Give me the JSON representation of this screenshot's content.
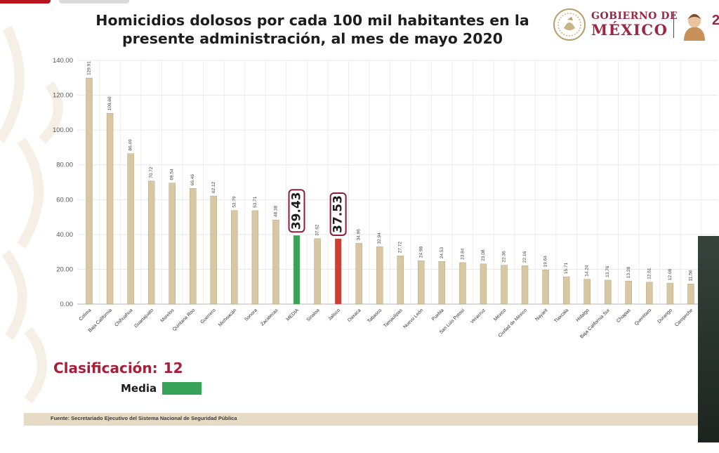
{
  "title_line1": "Homicidios dolosos por cada 100 mil habitantes en la",
  "title_line2": "presente administración, al mes de mayo 2020",
  "logo": {
    "line1": "GOBIERNO DE",
    "line2": "MÉXICO",
    "partial_number": "2",
    "color": "#9b2743"
  },
  "classification": {
    "label": "Clasificación:",
    "value": "12"
  },
  "legend": {
    "label": "Media",
    "color": "#3aa35a"
  },
  "source": "Fuente: Secretariado Ejecutivo del Sistema Nacional de Seguridad Pública",
  "chart_data": {
    "type": "bar",
    "categories": [
      "Colima",
      "Baja California",
      "Chihuahua",
      "Guanajuato",
      "Morelos",
      "Quintana Roo",
      "Guerrero",
      "Michoacán",
      "Sonora",
      "Zacatecas",
      "MEDIA",
      "Sinaloa",
      "Jalisco",
      "Oaxaca",
      "Tabasco",
      "Tamaulipas",
      "Nuevo León",
      "Puebla",
      "San Luis Potosí",
      "Veracruz",
      "México",
      "Ciudad de México",
      "Nayarit",
      "Tlaxcala",
      "Hidalgo",
      "Baja California Sur",
      "Chiapas",
      "Querétaro",
      "Durango",
      "Campeche"
    ],
    "values": [
      129.91,
      109.6,
      86.49,
      70.72,
      69.54,
      66.46,
      62.12,
      53.79,
      53.71,
      48.38,
      39.43,
      37.62,
      37.53,
      34.96,
      32.94,
      27.72,
      24.98,
      24.53,
      23.84,
      23.08,
      22.36,
      22.16,
      19.64,
      15.71,
      14.24,
      13.76,
      13.28,
      12.61,
      12.08,
      11.56
    ],
    "value_labels": [
      "129.91",
      "109.60",
      "86.49",
      "70.72",
      "69.54",
      "66.46",
      "62.12",
      "53.79",
      "53.71",
      "48.38",
      "39.43",
      "37.62",
      "37.53",
      "34.96",
      "32.94",
      "27.72",
      "24.98",
      "24.53",
      "23.84",
      "23.08",
      "22.36",
      "22.16",
      "19.64",
      "15.71",
      "14.24",
      "13.76",
      "13.28",
      "12.61",
      "12.08",
      "11.56"
    ],
    "highlight": {
      "MEDIA": "#3aa35a",
      "Jalisco": "#d43a2f"
    },
    "boxed_labels": [
      "MEDIA",
      "Jalisco"
    ],
    "bar_color": "#d8c7a3",
    "box_color": "#8c1d3c",
    "ylim": [
      0,
      140
    ],
    "yticks": [
      "0.00",
      "20.00",
      "40.00",
      "60.00",
      "80.00",
      "100.00",
      "120.00",
      "140.00"
    ],
    "grid": true,
    "title": "",
    "xlabel": "",
    "ylabel": ""
  }
}
